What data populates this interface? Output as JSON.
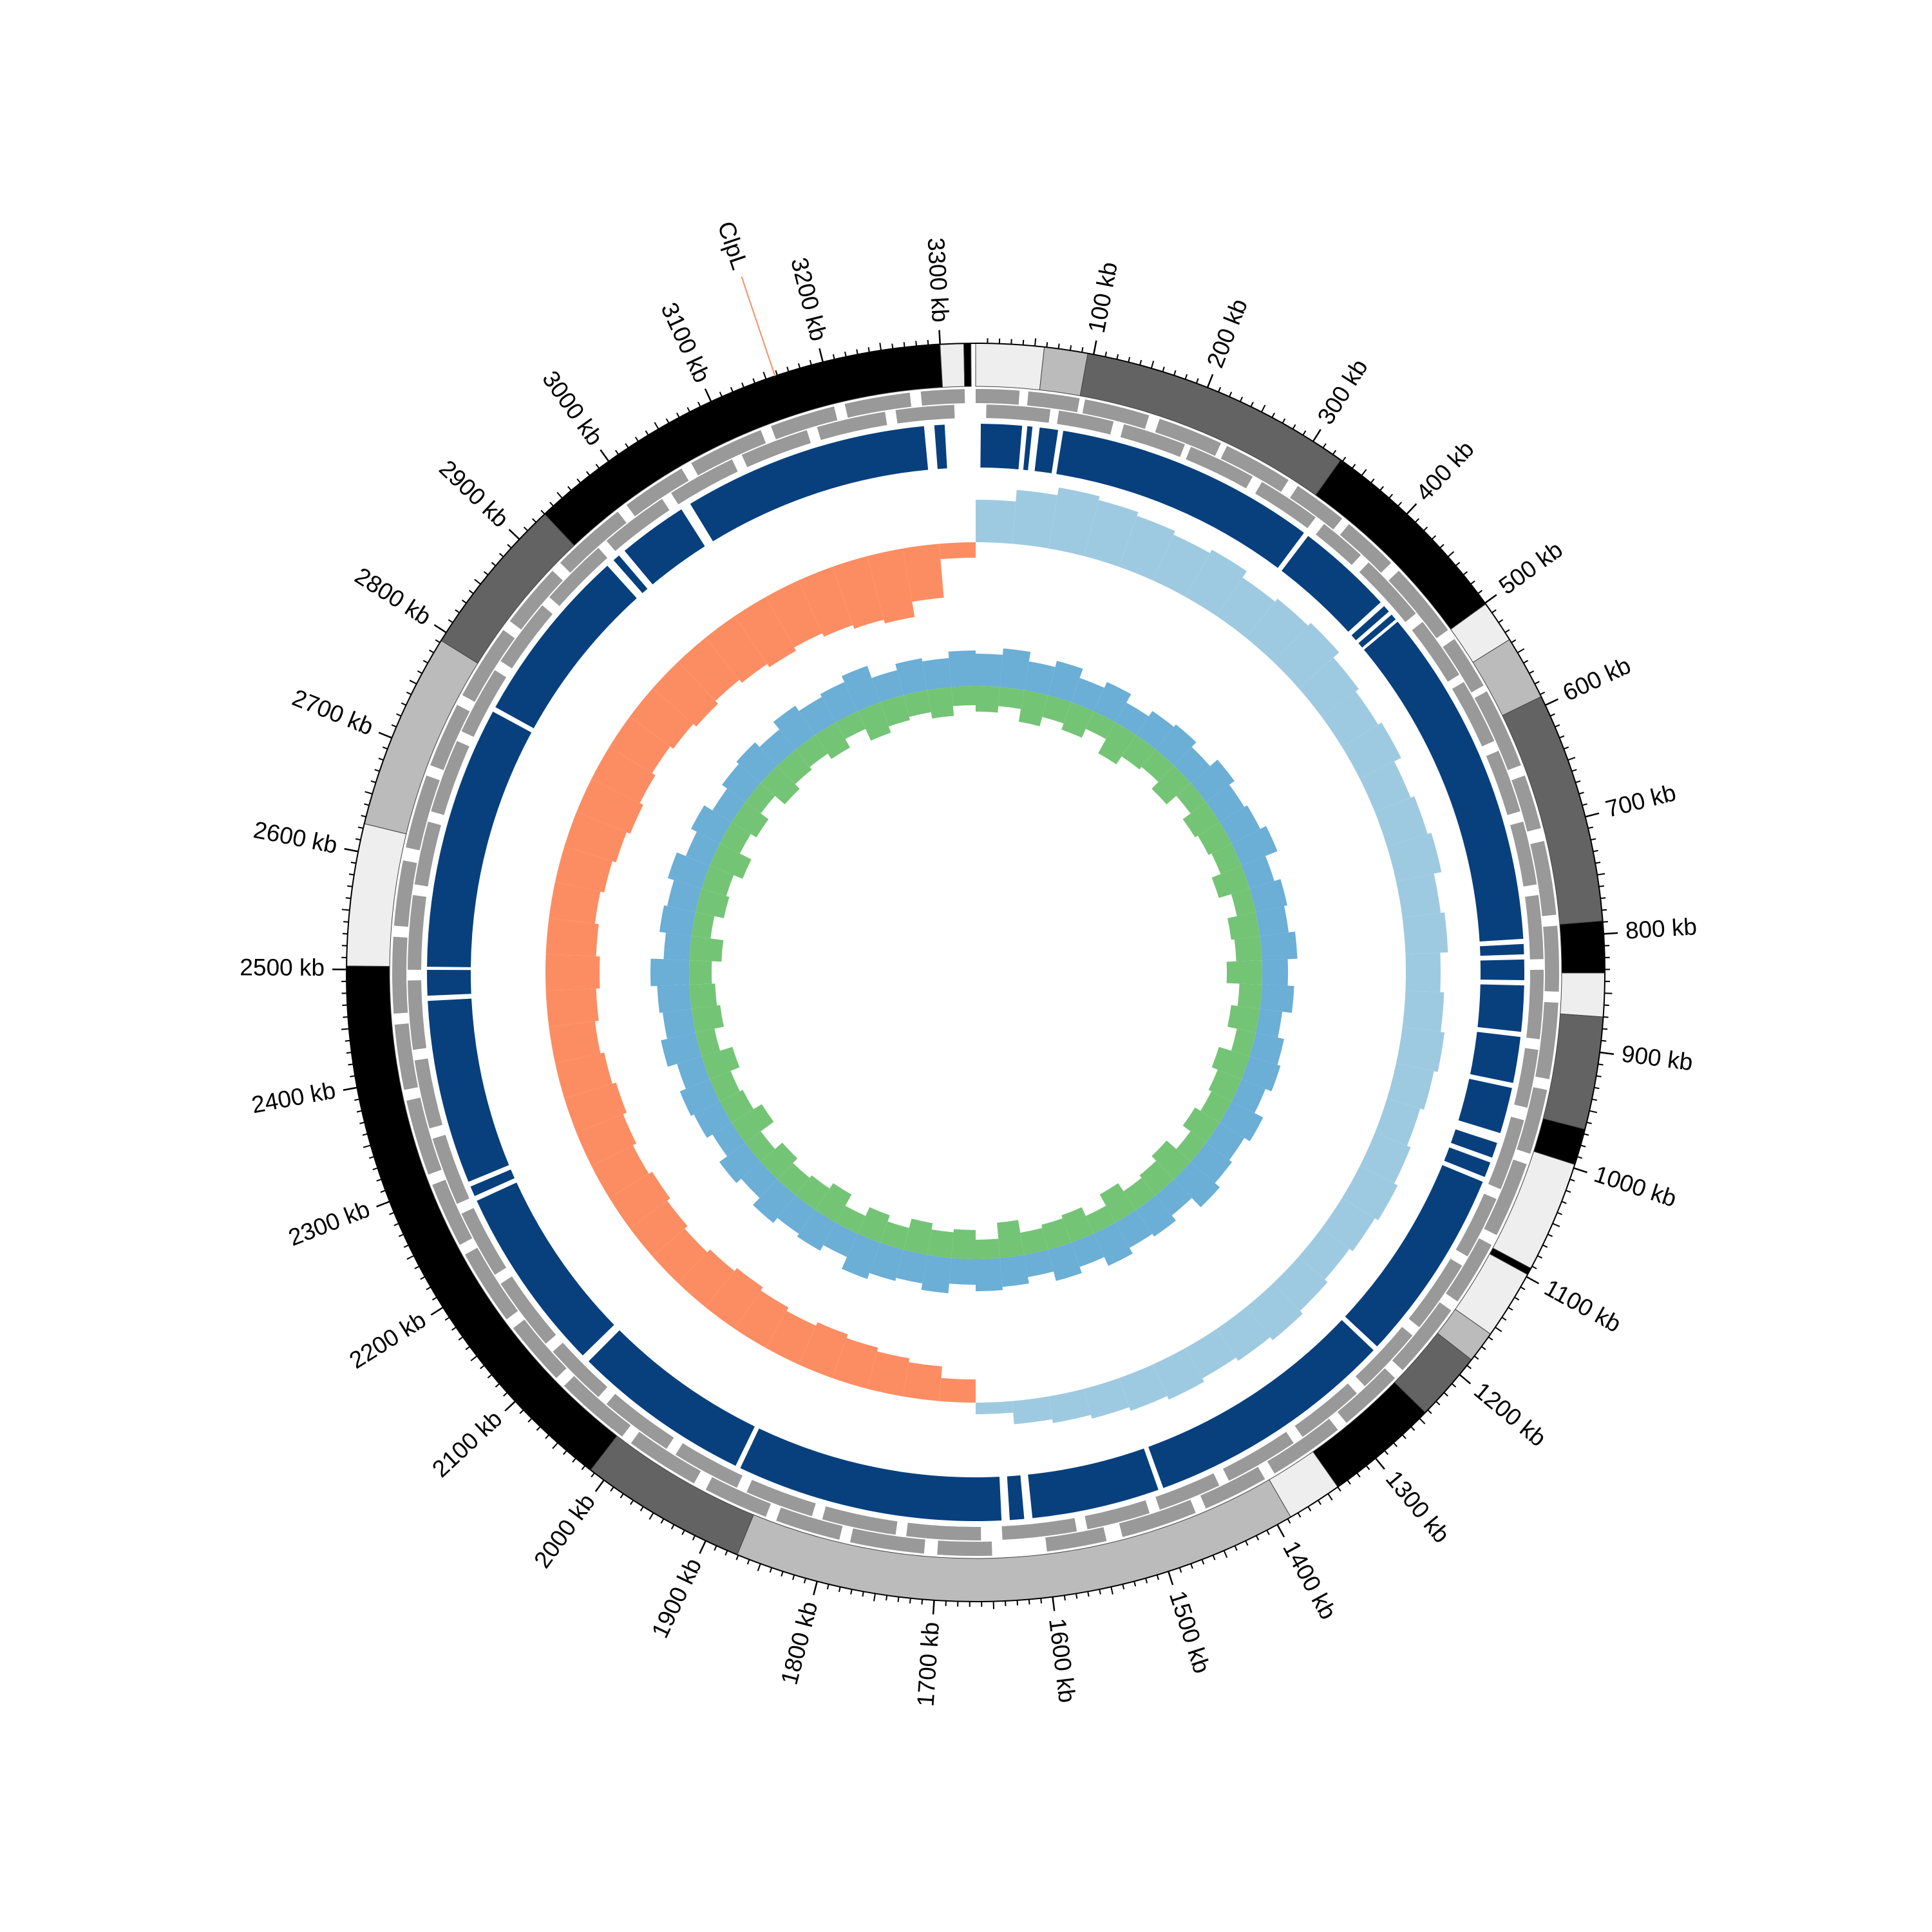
{
  "chart_data": {
    "type": "circular-genome",
    "xlim": [
      0,
      3330
    ],
    "xticks": [
      {
        "value": 100,
        "label": "100 kb"
      },
      {
        "value": 200,
        "label": "200 kb"
      },
      {
        "value": 300,
        "label": "300 kb"
      },
      {
        "value": 400,
        "label": "400 kb"
      },
      {
        "value": 500,
        "label": "500 kb"
      },
      {
        "value": 600,
        "label": "600 kb"
      },
      {
        "value": 700,
        "label": "700 kb"
      },
      {
        "value": 800,
        "label": "800 kb"
      },
      {
        "value": 900,
        "label": "900 kb"
      },
      {
        "value": 1000,
        "label": "1000 kb"
      },
      {
        "value": 1100,
        "label": "1100 kb"
      },
      {
        "value": 1200,
        "label": "1200 kb"
      },
      {
        "value": 1300,
        "label": "1300 kb"
      },
      {
        "value": 1400,
        "label": "1400 kb"
      },
      {
        "value": 1500,
        "label": "1500 kb"
      },
      {
        "value": 1600,
        "label": "1600 kb"
      },
      {
        "value": 1700,
        "label": "1700 kb"
      },
      {
        "value": 1800,
        "label": "1800 kb"
      },
      {
        "value": 1900,
        "label": "1900 kb"
      },
      {
        "value": 2000,
        "label": "2000 kb"
      },
      {
        "value": 2100,
        "label": "2100 kb"
      },
      {
        "value": 2200,
        "label": "2200 kb"
      },
      {
        "value": 2300,
        "label": "2300 kb"
      },
      {
        "value": 2400,
        "label": "2400 kb"
      },
      {
        "value": 2500,
        "label": "2500 kb"
      },
      {
        "value": 2600,
        "label": "2600 kb"
      },
      {
        "value": 2700,
        "label": "2700 kb"
      },
      {
        "value": 2800,
        "label": "2800 kb"
      },
      {
        "value": 2900,
        "label": "2900 kb"
      },
      {
        "value": 3000,
        "label": "3000 kb"
      },
      {
        "value": 3100,
        "label": "3100 kb"
      },
      {
        "value": 3200,
        "label": "3200 kb"
      },
      {
        "value": 3300,
        "label": "3300 kb"
      }
    ],
    "bands": [
      {
        "start": 0,
        "end": 58,
        "color": "#eeeeee"
      },
      {
        "start": 58,
        "end": 95,
        "color": "#bbbbbb"
      },
      {
        "start": 95,
        "end": 328,
        "color": "#636363"
      },
      {
        "start": 328,
        "end": 501,
        "color": "#000000"
      },
      {
        "start": 501,
        "end": 537,
        "color": "#eeeeee"
      },
      {
        "start": 537,
        "end": 592,
        "color": "#bbbbbb"
      },
      {
        "start": 592,
        "end": 789,
        "color": "#636363"
      },
      {
        "start": 789,
        "end": 833,
        "color": "#000000"
      },
      {
        "start": 833,
        "end": 870,
        "color": "#eeeeee"
      },
      {
        "start": 870,
        "end": 966,
        "color": "#636363"
      },
      {
        "start": 966,
        "end": 997,
        "color": "#000000"
      },
      {
        "start": 997,
        "end": 1092,
        "color": "#eeeeee"
      },
      {
        "start": 1092,
        "end": 1098,
        "color": "#000000"
      },
      {
        "start": 1098,
        "end": 1157,
        "color": "#eeeeee"
      },
      {
        "start": 1157,
        "end": 1184,
        "color": "#bbbbbb"
      },
      {
        "start": 1184,
        "end": 1243,
        "color": "#636363"
      },
      {
        "start": 1243,
        "end": 1340,
        "color": "#000000"
      },
      {
        "start": 1340,
        "end": 1387,
        "color": "#eeeeee"
      },
      {
        "start": 1387,
        "end": 1871,
        "color": "#bbbbbb"
      },
      {
        "start": 1871,
        "end": 2014,
        "color": "#636363"
      },
      {
        "start": 2014,
        "end": 2503,
        "color": "#000000"
      },
      {
        "start": 2503,
        "end": 2624,
        "color": "#eeeeee"
      },
      {
        "start": 2624,
        "end": 2792,
        "color": "#bbbbbb"
      },
      {
        "start": 2792,
        "end": 2930,
        "color": "#636363"
      },
      {
        "start": 2930,
        "end": 3300,
        "color": "#000000"
      },
      {
        "start": 3300,
        "end": 3320,
        "color": "#eeeeee"
      },
      {
        "start": 3320,
        "end": 3326,
        "color": "#000000"
      }
    ],
    "gene_color": "#999999",
    "genes": {
      "forward": [
        [
          0,
          40
        ],
        [
          48,
          95
        ],
        [
          100,
          160
        ],
        [
          170,
          230
        ],
        [
          236,
          300
        ],
        [
          310,
          360
        ],
        [
          368,
          420
        ],
        [
          430,
          500
        ],
        [
          510,
          560
        ],
        [
          566,
          640
        ],
        [
          650,
          700
        ],
        [
          712,
          780
        ],
        [
          790,
          850
        ],
        [
          860,
          930
        ],
        [
          940,
          1000
        ],
        [
          1010,
          1080
        ],
        [
          1090,
          1150
        ],
        [
          1160,
          1230
        ],
        [
          1240,
          1300
        ],
        [
          1310,
          1380
        ],
        [
          1390,
          1450
        ],
        [
          1460,
          1530
        ],
        [
          1545,
          1600
        ],
        [
          1650,
          1700
        ],
        [
          1712,
          1780
        ],
        [
          1790,
          1850
        ],
        [
          1860,
          1920
        ],
        [
          1932,
          2000
        ],
        [
          2010,
          2080
        ],
        [
          2090,
          2150
        ],
        [
          2160,
          2230
        ],
        [
          2240,
          2300
        ],
        [
          2310,
          2380
        ],
        [
          2390,
          2450
        ],
        [
          2460,
          2530
        ],
        [
          2540,
          2600
        ],
        [
          2612,
          2680
        ],
        [
          2690,
          2750
        ],
        [
          2760,
          2830
        ],
        [
          2840,
          2900
        ],
        [
          2910,
          2980
        ],
        [
          2990,
          3050
        ],
        [
          3060,
          3130
        ],
        [
          3140,
          3200
        ],
        [
          3210,
          3270
        ],
        [
          3280,
          3320
        ]
      ],
      "reverse": [
        [
          10,
          70
        ],
        [
          78,
          130
        ],
        [
          140,
          200
        ],
        [
          206,
          270
        ],
        [
          280,
          340
        ],
        [
          350,
          395
        ],
        [
          405,
          470
        ],
        [
          480,
          540
        ],
        [
          548,
          610
        ],
        [
          620,
          680
        ],
        [
          690,
          750
        ],
        [
          760,
          820
        ],
        [
          830,
          895
        ],
        [
          905,
          960
        ],
        [
          972,
          1040
        ],
        [
          1050,
          1110
        ],
        [
          1120,
          1190
        ],
        [
          1200,
          1265
        ],
        [
          1275,
          1340
        ],
        [
          1350,
          1420
        ],
        [
          1430,
          1490
        ],
        [
          1500,
          1560
        ],
        [
          1570,
          1640
        ],
        [
          1660,
          1730
        ],
        [
          1740,
          1810
        ],
        [
          1820,
          1885
        ],
        [
          1895,
          1960
        ],
        [
          1970,
          2040
        ],
        [
          2050,
          2110
        ],
        [
          2120,
          2190
        ],
        [
          2200,
          2265
        ],
        [
          2275,
          2340
        ],
        [
          2350,
          2415
        ],
        [
          2425,
          2490
        ],
        [
          2500,
          2570
        ],
        [
          2580,
          2640
        ],
        [
          2650,
          2720
        ],
        [
          2730,
          2795
        ],
        [
          2805,
          2870
        ],
        [
          2880,
          2945
        ],
        [
          2955,
          3020
        ],
        [
          3030,
          3095
        ],
        [
          3105,
          3170
        ],
        [
          3180,
          3245
        ],
        [
          3255,
          3310
        ]
      ]
    },
    "block_color": "#08407e",
    "blocks": [
      [
        5,
        45
      ],
      [
        50,
        55
      ],
      [
        62,
        80
      ],
      [
        85,
        340
      ],
      [
        345,
        440
      ],
      [
        445,
        452
      ],
      [
        456,
        462
      ],
      [
        465,
        800
      ],
      [
        805,
        815
      ],
      [
        820,
        840
      ],
      [
        845,
        890
      ],
      [
        895,
        940
      ],
      [
        945,
        990
      ],
      [
        1000,
        1015
      ],
      [
        1020,
        1035
      ],
      [
        1040,
        1230
      ],
      [
        1235,
        1480
      ],
      [
        1485,
        1610
      ],
      [
        1618,
        1632
      ],
      [
        1640,
        1900
      ],
      [
        1905,
        2080
      ],
      [
        2088,
        2270
      ],
      [
        2275,
        2285
      ],
      [
        2290,
        2470
      ],
      [
        2475,
        2500
      ],
      [
        2503,
        2760
      ],
      [
        2765,
        2940
      ],
      [
        2948,
        2955
      ],
      [
        2962,
        3030
      ],
      [
        3040,
        3280
      ],
      [
        3290,
        3300
      ]
    ],
    "bins": [
      0,
      45,
      90,
      135,
      180,
      225,
      270,
      315,
      360,
      405,
      450,
      495,
      540,
      585,
      630,
      675,
      720,
      765,
      810,
      855,
      900,
      945,
      990,
      1035,
      1080,
      1125,
      1170,
      1215,
      1260,
      1305,
      1350,
      1395,
      1440,
      1485,
      1530,
      1575,
      1620,
      1665,
      1710,
      1755,
      1800,
      1845,
      1890,
      1935,
      1980,
      2025,
      2070,
      2115,
      2160,
      2205,
      2250,
      2295,
      2340,
      2385,
      2430,
      2475,
      2520,
      2565,
      2610,
      2655,
      2700,
      2745,
      2790,
      2835,
      2880,
      2925,
      2970,
      3015,
      3060,
      3105,
      3150,
      3195,
      3240,
      3285,
      3330
    ],
    "tracks": [
      {
        "ylim": [
          -1,
          1
        ],
        "positive_color": "#9ecae1",
        "negative_color": "#fc8d62",
        "values": [
          0.55,
          0.7,
          0.8,
          0.75,
          0.7,
          0.65,
          0.7,
          0.6,
          0.65,
          0.7,
          0.6,
          0.55,
          0.6,
          0.5,
          0.55,
          0.6,
          0.5,
          0.55,
          0.45,
          0.5,
          0.55,
          0.5,
          0.45,
          0.5,
          0.55,
          0.5,
          0.45,
          0.5,
          0.55,
          0.5,
          0.45,
          0.5,
          0.45,
          0.4,
          0.35,
          0.3,
          0.15,
          -0.3,
          -0.45,
          -0.5,
          -0.55,
          -0.6,
          -0.55,
          -0.6,
          -0.65,
          -0.6,
          -0.55,
          -0.6,
          -0.65,
          -0.6,
          -0.65,
          -0.7,
          -0.65,
          -0.6,
          -0.65,
          -0.7,
          -0.65,
          -0.6,
          -0.65,
          -0.7,
          -0.75,
          -0.7,
          -0.65,
          -0.7,
          -0.75,
          -0.7,
          -0.75,
          -0.8,
          -0.75,
          -0.8,
          -0.85,
          -0.9,
          -0.7,
          -0.2
        ]
      },
      {
        "ylim": [
          -1,
          1
        ],
        "series": [
          {
            "color": "#6baed6",
            "values": [
              0.5,
              0.6,
              0.45,
              0.55,
              0.4,
              0.5,
              0.35,
              0.45,
              0.5,
              0.4,
              0.55,
              0.45,
              0.5,
              0.6,
              0.4,
              0.5,
              0.45,
              0.55,
              0.4,
              0.5,
              0.35,
              0.45,
              0.5,
              0.4,
              0.55,
              0.45,
              0.5,
              0.6,
              0.4,
              0.5,
              0.45,
              0.55,
              0.4,
              0.5,
              0.35,
              0.45,
              0.5,
              0.4,
              0.55,
              0.45,
              0.5,
              0.6,
              0.4,
              0.5,
              0.45,
              0.55,
              0.4,
              0.5,
              0.35,
              0.45,
              0.5,
              0.4,
              0.55,
              0.45,
              0.5,
              0.6,
              0.4,
              0.5,
              0.45,
              0.55,
              0.4,
              0.5,
              0.35,
              0.45,
              0.5,
              0.4,
              0.55,
              0.45,
              0.5,
              0.6,
              0.4,
              0.5,
              0.45,
              0.55
            ]
          },
          {
            "color": "#74c476",
            "values": [
              -0.4,
              -0.3,
              -0.5,
              -0.35,
              -0.45,
              -0.3,
              -0.55,
              -0.4,
              -0.35,
              -0.5,
              -0.3,
              -0.45,
              -0.4,
              -0.35,
              -0.5,
              -0.3,
              -0.45,
              -0.4,
              -0.55,
              -0.35,
              -0.45,
              -0.3,
              -0.5,
              -0.4,
              -0.35,
              -0.45,
              -0.3,
              -0.5,
              -0.4,
              -0.35,
              -0.5,
              -0.3,
              -0.45,
              -0.4,
              -0.35,
              -0.55,
              -0.3,
              -0.45,
              -0.4,
              -0.5,
              -0.35,
              -0.45,
              -0.3,
              -0.5,
              -0.4,
              -0.35,
              -0.45,
              -0.3,
              -0.55,
              -0.4,
              -0.35,
              -0.5,
              -0.3,
              -0.45,
              -0.4,
              -0.35,
              -0.5,
              -0.3,
              -0.45,
              -0.4,
              -0.55,
              -0.35,
              -0.45,
              -0.3,
              -0.5,
              -0.4,
              -0.35,
              -0.45,
              -0.3,
              -0.5,
              -0.4,
              -0.35,
              -0.45,
              -0.3
            ]
          }
        ]
      }
    ],
    "annotations": [
      {
        "label": "ClpL",
        "position": 3158,
        "color": "#3182bd",
        "line_color": "#fc8d62"
      }
    ]
  }
}
